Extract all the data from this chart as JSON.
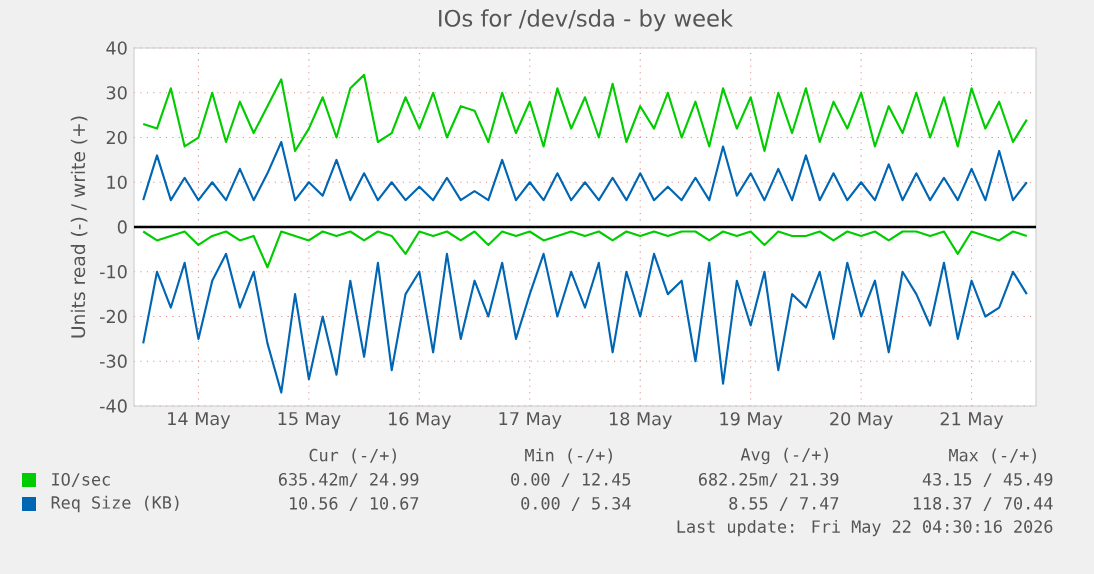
{
  "chart_data": {
    "type": "line",
    "title": "IOs for /dev/sda - by week",
    "ylabel": "Units read (-) / write (+)",
    "x": [
      "2026-05-14T00:00",
      "2026-05-14T03:00",
      "2026-05-14T06:00",
      "2026-05-14T09:00",
      "2026-05-14T12:00",
      "2026-05-14T15:00",
      "2026-05-14T18:00",
      "2026-05-14T21:00",
      "2026-05-15T00:00",
      "2026-05-15T03:00",
      "2026-05-15T06:00",
      "2026-05-15T09:00",
      "2026-05-15T12:00",
      "2026-05-15T15:00",
      "2026-05-15T18:00",
      "2026-05-15T21:00",
      "2026-05-16T00:00",
      "2026-05-16T03:00",
      "2026-05-16T06:00",
      "2026-05-16T09:00",
      "2026-05-16T12:00",
      "2026-05-16T15:00",
      "2026-05-16T18:00",
      "2026-05-16T21:00",
      "2026-05-17T00:00",
      "2026-05-17T03:00",
      "2026-05-17T06:00",
      "2026-05-17T09:00",
      "2026-05-17T12:00",
      "2026-05-17T15:00",
      "2026-05-17T18:00",
      "2026-05-17T21:00",
      "2026-05-18T00:00",
      "2026-05-18T03:00",
      "2026-05-18T06:00",
      "2026-05-18T09:00",
      "2026-05-18T12:00",
      "2026-05-18T15:00",
      "2026-05-18T18:00",
      "2026-05-18T21:00",
      "2026-05-19T00:00",
      "2026-05-19T03:00",
      "2026-05-19T06:00",
      "2026-05-19T09:00",
      "2026-05-19T12:00",
      "2026-05-19T15:00",
      "2026-05-19T18:00",
      "2026-05-19T21:00",
      "2026-05-20T00:00",
      "2026-05-20T03:00",
      "2026-05-20T06:00",
      "2026-05-20T09:00",
      "2026-05-20T12:00",
      "2026-05-20T15:00",
      "2026-05-20T18:00",
      "2026-05-20T21:00",
      "2026-05-21T00:00",
      "2026-05-21T03:00",
      "2026-05-21T06:00",
      "2026-05-21T09:00",
      "2026-05-21T12:00",
      "2026-05-21T15:00",
      "2026-05-21T18:00",
      "2026-05-21T21:00",
      "2026-05-22T00:00"
    ],
    "series": [
      {
        "name": "IO/sec",
        "color": "#00cc00",
        "values": [
          23,
          22,
          31,
          18,
          20,
          30,
          19,
          28,
          21,
          27,
          33,
          17,
          22,
          29,
          20,
          31,
          34,
          19,
          21,
          29,
          22,
          30,
          20,
          27,
          26,
          19,
          30,
          21,
          28,
          18,
          31,
          22,
          29,
          20,
          32,
          19,
          27,
          22,
          30,
          20,
          28,
          18,
          31,
          22,
          29,
          17,
          30,
          21,
          31,
          19,
          28,
          22,
          30,
          18,
          27,
          21,
          30,
          20,
          29,
          18,
          31,
          22,
          28,
          19,
          24
        ]
      },
      {
        "name": "Req Size (KB)",
        "color": "#0066b3",
        "values": [
          6,
          16,
          6,
          11,
          6,
          10,
          6,
          13,
          6,
          12,
          19,
          6,
          10,
          7,
          15,
          6,
          12,
          6,
          10,
          6,
          9,
          6,
          11,
          6,
          8,
          6,
          15,
          6,
          10,
          6,
          12,
          6,
          10,
          6,
          11,
          6,
          12,
          6,
          9,
          6,
          11,
          6,
          18,
          7,
          12,
          6,
          13,
          6,
          16,
          6,
          12,
          6,
          10,
          6,
          14,
          6,
          12,
          6,
          11,
          6,
          13,
          6,
          17,
          6,
          10
        ]
      },
      {
        "color": "#00cc00",
        "values": [
          -1,
          -3,
          -2,
          -1,
          -4,
          -2,
          -1,
          -3,
          -2,
          -9,
          -1,
          -2,
          -3,
          -1,
          -2,
          -1,
          -3,
          -1,
          -2,
          -6,
          -1,
          -2,
          -1,
          -3,
          -1,
          -4,
          -1,
          -2,
          -1,
          -3,
          -2,
          -1,
          -2,
          -1,
          -3,
          -1,
          -2,
          -1,
          -2,
          -1,
          -1,
          -3,
          -1,
          -2,
          -1,
          -4,
          -1,
          -2,
          -2,
          -1,
          -3,
          -1,
          -2,
          -1,
          -3,
          -1,
          -1,
          -2,
          -1,
          -6,
          -1,
          -2,
          -3,
          -1,
          -2
        ]
      },
      {
        "color": "#0066b3",
        "values": [
          -26,
          -10,
          -18,
          -8,
          -25,
          -12,
          -6,
          -18,
          -10,
          -26,
          -37,
          -15,
          -34,
          -20,
          -33,
          -12,
          -29,
          -8,
          -32,
          -15,
          -10,
          -28,
          -6,
          -25,
          -12,
          -20,
          -8,
          -25,
          -15,
          -6,
          -20,
          -10,
          -18,
          -8,
          -28,
          -10,
          -20,
          -6,
          -15,
          -12,
          -30,
          -8,
          -35,
          -12,
          -22,
          -10,
          -32,
          -15,
          -18,
          -10,
          -25,
          -8,
          -20,
          -12,
          -28,
          -10,
          -15,
          -22,
          -8,
          -25,
          -12,
          -20,
          -18,
          -10,
          -15
        ]
      }
    ],
    "xlim": [
      "2026-05-13T22:00",
      "2026-05-22T02:00"
    ],
    "xticks": [
      {
        "value": "2026-05-14T12:00",
        "label": "14 May"
      },
      {
        "value": "2026-05-15T12:00",
        "label": "15 May"
      },
      {
        "value": "2026-05-16T12:00",
        "label": "16 May"
      },
      {
        "value": "2026-05-17T12:00",
        "label": "17 May"
      },
      {
        "value": "2026-05-18T12:00",
        "label": "18 May"
      },
      {
        "value": "2026-05-19T12:00",
        "label": "19 May"
      },
      {
        "value": "2026-05-20T12:00",
        "label": "20 May"
      },
      {
        "value": "2026-05-21T12:00",
        "label": "21 May"
      }
    ],
    "ylim": [
      -40,
      40
    ],
    "yticks": [
      -40,
      -30,
      -20,
      -10,
      0,
      10,
      20,
      30,
      40
    ],
    "ref_lines": [
      {
        "axis": "y",
        "value": 0,
        "color": "#000000"
      }
    ],
    "grid": true,
    "legend": "bottom",
    "marker": "none",
    "line_style": "solid",
    "annotations": [
      "Cur (-/+)",
      "Min (-/+)",
      "Avg (-/+)",
      "Max (-/+)",
      "635.42m/ 24.99",
      "0.00 / 12.45",
      "682.25m/ 21.39",
      "43.15 / 45.49",
      "10.56 / 10.67",
      "0.00 /  5.34",
      "8.55 /  7.47",
      "118.37 / 70.44",
      "Last update: Fri May 22 04:30:16 2026"
    ]
  }
}
